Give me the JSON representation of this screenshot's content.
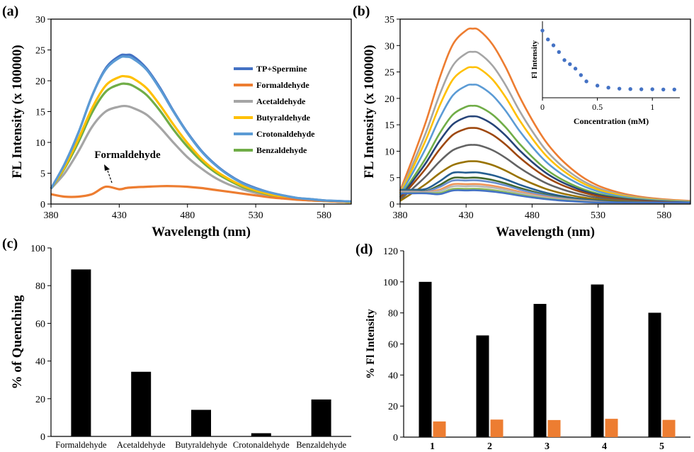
{
  "panel_labels": [
    "(a)",
    "(b)",
    "(c)",
    "(d)"
  ],
  "chart_data": [
    {
      "panel": "(a)",
      "type": "line",
      "xlabel": "Wavelength (nm)",
      "ylabel": "FL Intensity (x 100000)",
      "xlim": [
        380,
        600
      ],
      "ylim": [
        0,
        30
      ],
      "xticks": [
        380,
        430,
        480,
        530,
        580
      ],
      "yticks": [
        0,
        5,
        10,
        15,
        20,
        25,
        30
      ],
      "grid": false,
      "legend_position": "right",
      "annotation": "Formaldehyde",
      "colors": {
        "TP+Spermine": "#4472c4",
        "Formaldehyde": "#ed7d31",
        "Acetaldehyde": "#a5a5a5",
        "Butyraldehyde": "#ffc000",
        "Crotonaldehyde": "#5b9bd5",
        "Benzaldehyde": "#70ad47"
      },
      "x": [
        380,
        390,
        400,
        410,
        420,
        430,
        435,
        440,
        450,
        460,
        470,
        480,
        490,
        500,
        510,
        520,
        530,
        540,
        550,
        560,
        570,
        580,
        590,
        600
      ],
      "series": [
        {
          "name": "TP+Spermine",
          "values": [
            2.5,
            6.5,
            11.5,
            17.5,
            22.0,
            24.0,
            24.2,
            24.0,
            22.0,
            18.8,
            15.0,
            11.6,
            8.7,
            6.5,
            4.8,
            3.5,
            2.6,
            1.9,
            1.4,
            1.0,
            0.8,
            0.6,
            0.5,
            0.4
          ]
        },
        {
          "name": "Formaldehyde",
          "values": [
            1.6,
            1.2,
            1.2,
            1.6,
            2.8,
            2.4,
            2.6,
            2.7,
            2.8,
            2.9,
            2.9,
            2.8,
            2.6,
            2.3,
            2.0,
            1.7,
            1.4,
            1.1,
            0.9,
            0.7,
            0.6,
            0.5,
            0.4,
            0.4
          ]
        },
        {
          "name": "Acetaldehyde",
          "values": [
            2.5,
            5.0,
            8.5,
            12.5,
            15.0,
            15.8,
            15.9,
            15.6,
            14.5,
            12.4,
            9.9,
            7.6,
            5.8,
            4.3,
            3.2,
            2.4,
            1.8,
            1.3,
            1.0,
            0.8,
            0.6,
            0.5,
            0.4,
            0.3
          ]
        },
        {
          "name": "Butyraldehyde",
          "values": [
            2.5,
            6.0,
            10.5,
            15.5,
            19.2,
            20.6,
            20.7,
            20.4,
            18.8,
            16.0,
            12.8,
            9.9,
            7.4,
            5.5,
            4.1,
            3.0,
            2.2,
            1.6,
            1.2,
            0.9,
            0.7,
            0.5,
            0.4,
            0.3
          ]
        },
        {
          "name": "Crotonaldehyde",
          "values": [
            2.5,
            6.5,
            11.5,
            17.5,
            21.8,
            23.7,
            23.9,
            23.6,
            21.8,
            18.6,
            14.9,
            11.5,
            8.6,
            6.4,
            4.7,
            3.4,
            2.5,
            1.9,
            1.4,
            1.0,
            0.8,
            0.6,
            0.5,
            0.4
          ]
        },
        {
          "name": "Benzaldehyde",
          "values": [
            2.5,
            5.8,
            10.0,
            14.8,
            18.2,
            19.4,
            19.5,
            19.2,
            17.7,
            15.1,
            12.0,
            9.3,
            7.0,
            5.2,
            3.9,
            2.8,
            2.1,
            1.5,
            1.1,
            0.8,
            0.6,
            0.5,
            0.4,
            0.3
          ]
        }
      ]
    },
    {
      "panel": "(b)",
      "type": "line",
      "xlabel": "Wavelength (nm)",
      "ylabel": "FL Intensity (x 100000)",
      "xlim": [
        380,
        600
      ],
      "ylim": [
        0,
        35
      ],
      "xticks": [
        380,
        430,
        480,
        530,
        580
      ],
      "yticks": [
        0,
        5,
        10,
        15,
        20,
        25,
        30,
        35
      ],
      "grid": false,
      "x": [
        380,
        390,
        400,
        410,
        420,
        430,
        435,
        440,
        450,
        460,
        470,
        480,
        490,
        500,
        510,
        520,
        530,
        540,
        550,
        560,
        570,
        580,
        590,
        600
      ],
      "series": [
        {
          "color": "#ed7d31",
          "peak": 33.2
        },
        {
          "color": "#a5a5a5",
          "peak": 28.8
        },
        {
          "color": "#ffc000",
          "peak": 25.9
        },
        {
          "color": "#5b9bd5",
          "peak": 22.6
        },
        {
          "color": "#70ad47",
          "peak": 18.6
        },
        {
          "color": "#264478",
          "peak": 16.6
        },
        {
          "color": "#9e480e",
          "peak": 14.4
        },
        {
          "color": "#636363",
          "peak": 11.2
        },
        {
          "color": "#997300",
          "peak": 8.1
        },
        {
          "color": "#255e91",
          "peak": 6.0
        },
        {
          "color": "#43682b",
          "peak": 5.0
        },
        {
          "color": "#698ed0",
          "peak": 4.5
        },
        {
          "color": "#f1975a",
          "peak": 3.8
        },
        {
          "color": "#b7b7b7",
          "peak": 3.4
        },
        {
          "color": "#8fbc5a",
          "peak": 2.9
        },
        {
          "color": "#4472c4",
          "peak": 2.6
        }
      ],
      "inset": {
        "type": "scatter",
        "xlabel": "Concentration (mM)",
        "ylabel": "Fl Intensity",
        "xlim": [
          0,
          1.25
        ],
        "xticks": [
          0,
          0.5,
          1
        ],
        "x": [
          0,
          0.05,
          0.1,
          0.15,
          0.2,
          0.25,
          0.3,
          0.35,
          0.4,
          0.5,
          0.6,
          0.7,
          0.8,
          0.9,
          1.0,
          1.1,
          1.2
        ],
        "y": [
          33.2,
          28.8,
          25.9,
          22.6,
          18.6,
          16.6,
          14.4,
          11.2,
          8.1,
          6.0,
          5.0,
          4.5,
          4.3,
          4.2,
          4.2,
          4.1,
          4.1
        ],
        "ylim": [
          0,
          35
        ],
        "color": "#4472c4"
      }
    },
    {
      "panel": "(c)",
      "type": "bar",
      "ylabel": "% of Quenching",
      "categories": [
        "Formaldehyde",
        "Acetaldehyde",
        "Butyraldehyde",
        "Crotonaldehyde",
        "Benzaldehyde"
      ],
      "values": [
        88.6,
        34.3,
        14.1,
        1.7,
        19.6
      ],
      "ylim": [
        0,
        100
      ],
      "yticks": [
        0,
        20,
        40,
        60,
        80,
        100
      ],
      "color": "#000000"
    },
    {
      "panel": "(d)",
      "type": "bar",
      "ylabel": "% Fl Intensity",
      "categories": [
        "1",
        "2",
        "3",
        "4",
        "5"
      ],
      "ylim": [
        0,
        120
      ],
      "yticks": [
        0,
        20,
        40,
        60,
        80,
        100,
        120
      ],
      "series": [
        {
          "values": [
            100,
            65.5,
            85.8,
            98.3,
            80.1
          ],
          "color": "#000000"
        },
        {
          "values": [
            10.1,
            11.3,
            11.0,
            11.8,
            11.1
          ],
          "color": "#ed7d31"
        }
      ]
    }
  ]
}
